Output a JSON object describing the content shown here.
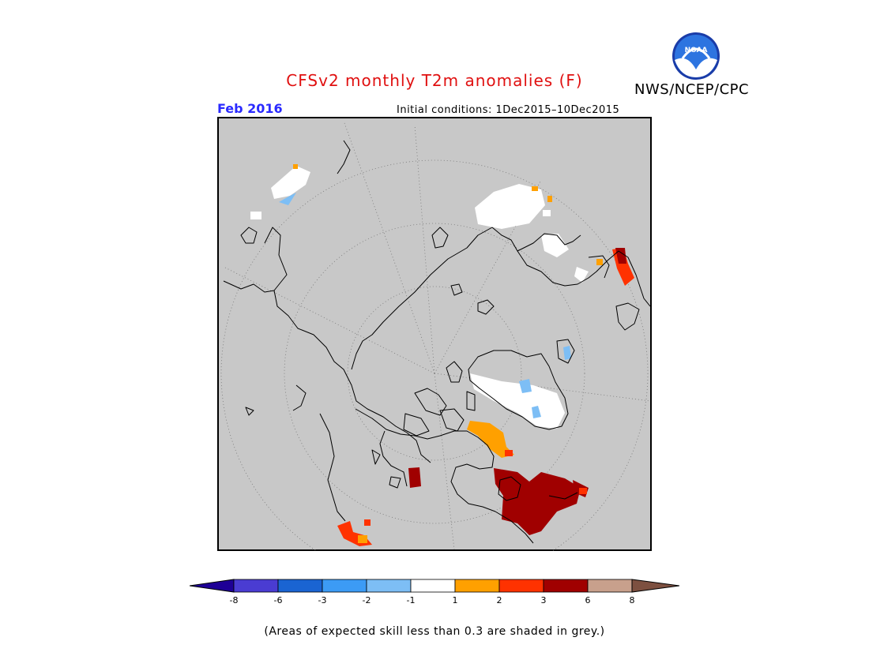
{
  "title": "CFSv2 monthly T2m anomalies (F)",
  "period": "Feb 2016",
  "initial_conditions": "Initial conditions: 1Dec2015–10Dec2015",
  "agency": "NWS/NCEP/CPC",
  "logo_text": "NOAA",
  "footnote": "(Areas of expected skill less than 0.3 are shaded in grey.)",
  "colors": {
    "skill_grey": "#c8c8c8",
    "coast": "#000000"
  },
  "legend": {
    "bins": [
      {
        "color": "#1e0096"
      },
      {
        "color": "#4a3cd2"
      },
      {
        "color": "#1a64d2"
      },
      {
        "color": "#3c9bf5"
      },
      {
        "color": "#7dbef5"
      },
      {
        "color": "#ffffff"
      },
      {
        "color": "#ffa000"
      },
      {
        "color": "#ff3200"
      },
      {
        "color": "#a00000"
      },
      {
        "color": "#c8a08c"
      },
      {
        "color": "#7d5040"
      }
    ],
    "ticks": [
      "-8",
      "-6",
      "-3",
      "-2",
      "-1",
      "1",
      "2",
      "3",
      "6",
      "8"
    ]
  }
}
